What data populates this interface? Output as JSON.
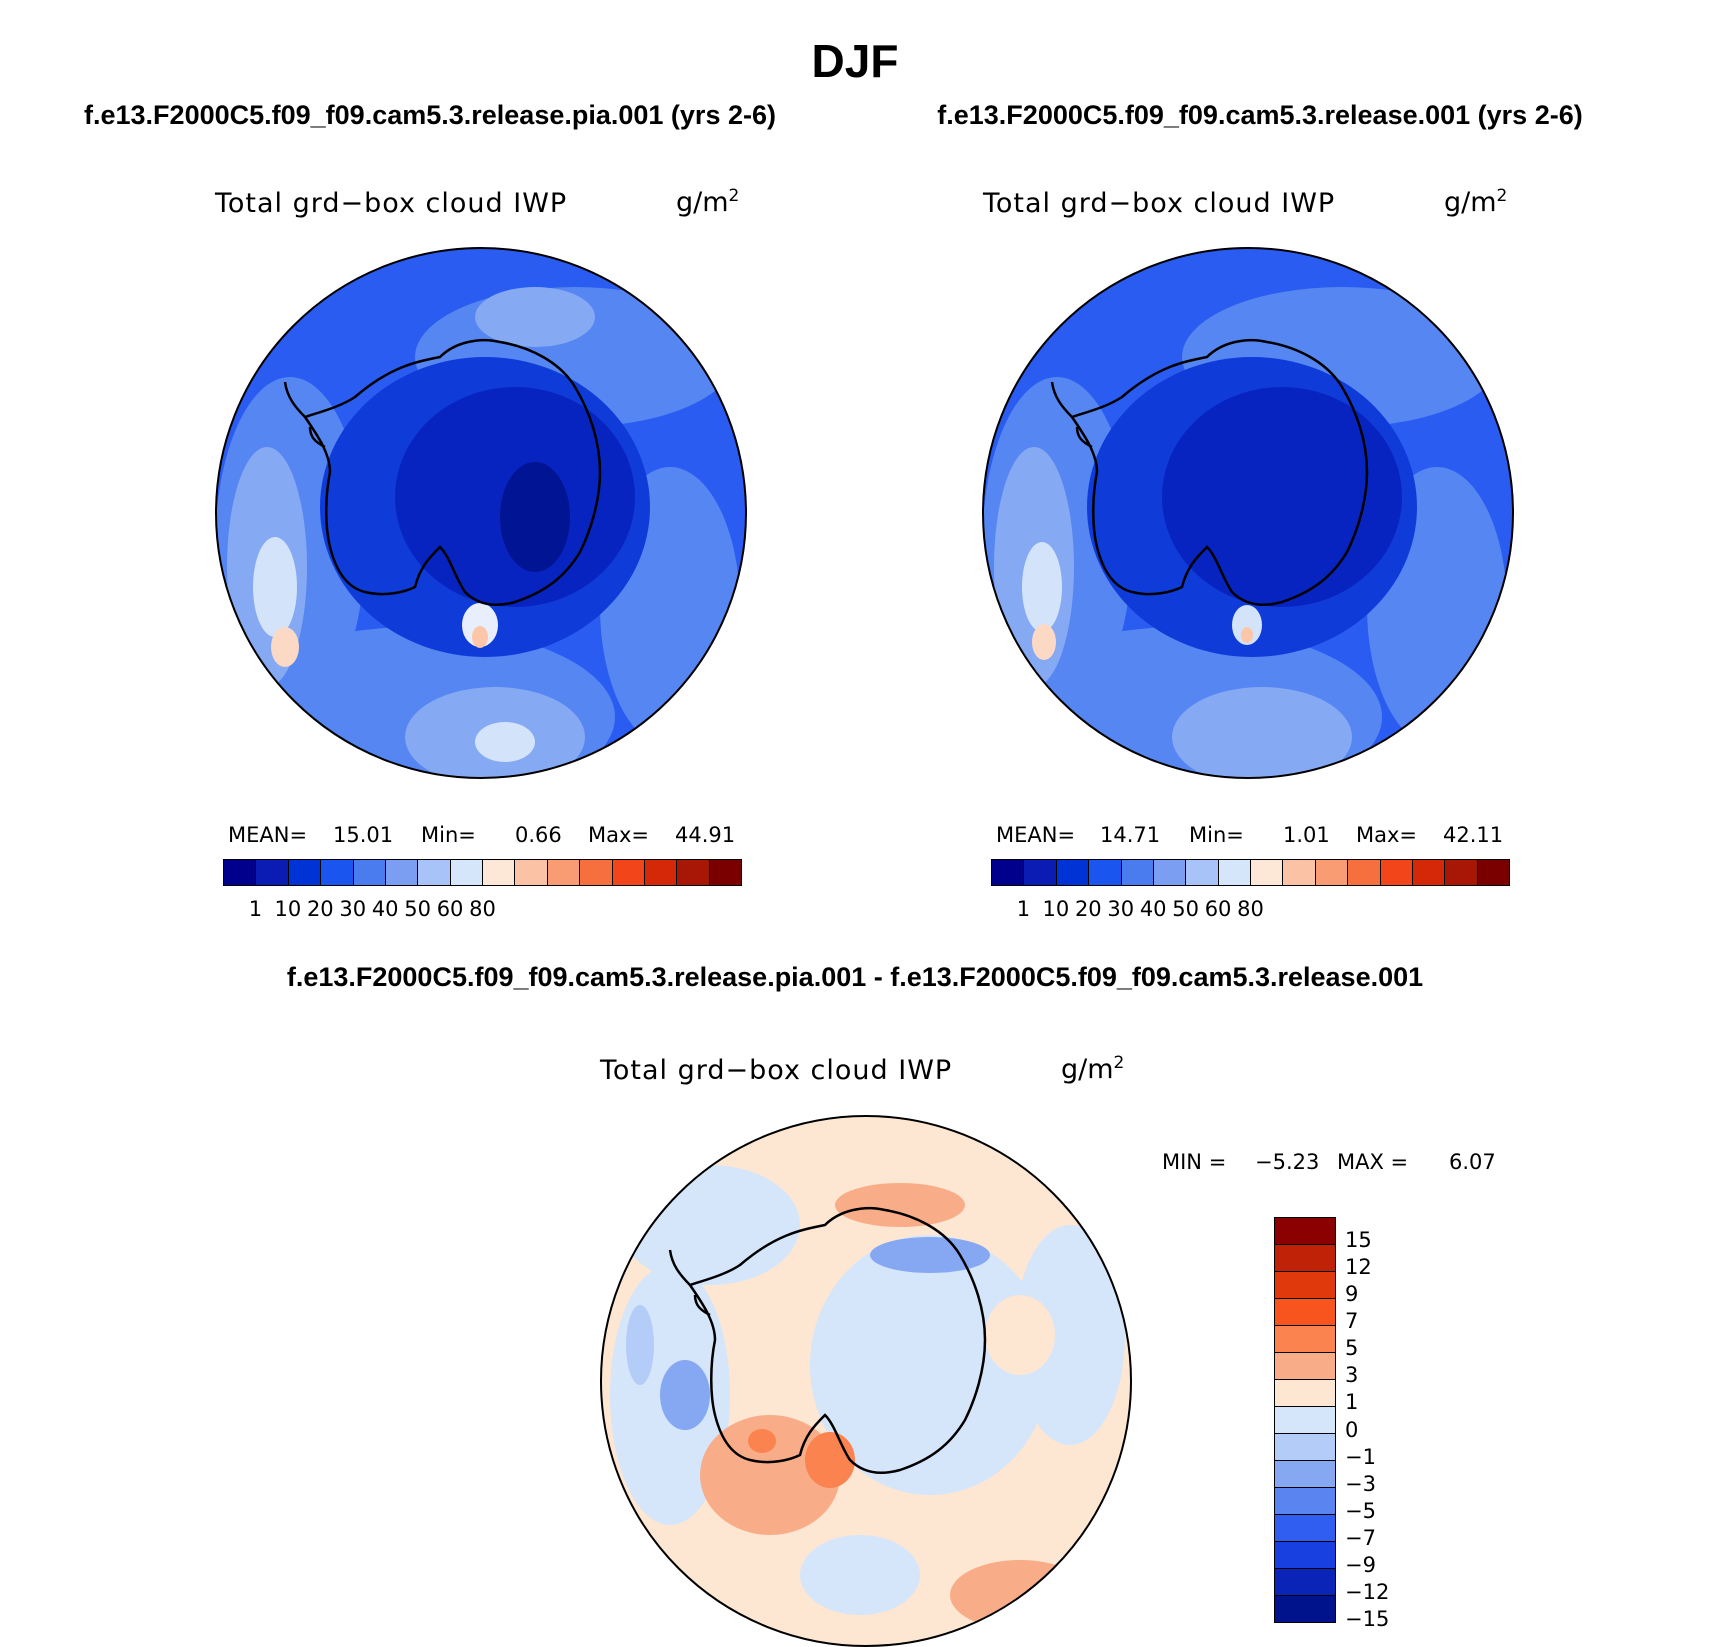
{
  "title": "DJF",
  "left_case": "f.e13.F2000C5.f09_f09.cam5.3.release.pia.001 (yrs 2-6)",
  "right_case": "f.e13.F2000C5.f09_f09.cam5.3.release.001 (yrs 2-6)",
  "diff_title": "f.e13.F2000C5.f09_f09.cam5.3.release.pia.001 - f.e13.F2000C5.f09_f09.cam5.3.release.001",
  "variable": "Total grd−box cloud IWP",
  "units": "g/m",
  "units_exp": "2",
  "left_stats": {
    "mean_label": "MEAN=",
    "mean": "15.01",
    "min_label": "Min=",
    "min": "0.66",
    "max_label": "Max=",
    "max": "44.91"
  },
  "right_stats": {
    "mean_label": "MEAN=",
    "mean": "14.71",
    "min_label": "Min=",
    "min": "1.01",
    "max_label": "Max=",
    "max": "42.11"
  },
  "diff_stats": {
    "min_label": "MIN =",
    "min": "−5.23",
    "max_label": "MAX =",
    "max": "6.07"
  },
  "abs_colorbar": {
    "labels": [
      "1",
      "10",
      "20",
      "30",
      "40",
      "50",
      "60",
      "80"
    ],
    "colors": [
      "#00008c",
      "#0a1cb4",
      "#0033d6",
      "#1a55f0",
      "#4a7cf0",
      "#7b9ef2",
      "#a8c3f8",
      "#d5e6fa",
      "#fde8d8",
      "#fcc2a6",
      "#f99c74",
      "#f6703f",
      "#f2461a",
      "#d42808",
      "#a81606",
      "#7a0000"
    ]
  },
  "diff_colorbar": {
    "labels": [
      "15",
      "12",
      "9",
      "7",
      "5",
      "3",
      "1",
      "0",
      "−1",
      "−3",
      "−5",
      "−7",
      "−9",
      "−12",
      "−15"
    ],
    "colors": [
      "#8b0000",
      "#c02208",
      "#e03a0c",
      "#f8541e",
      "#fb8350",
      "#f8ad88",
      "#fde6d2",
      "#d5e6fa",
      "#b3cdf8",
      "#86a8f2",
      "#5a84f0",
      "#2f5ef0",
      "#1840e0",
      "#0a24b8",
      "#00128c"
    ]
  }
}
